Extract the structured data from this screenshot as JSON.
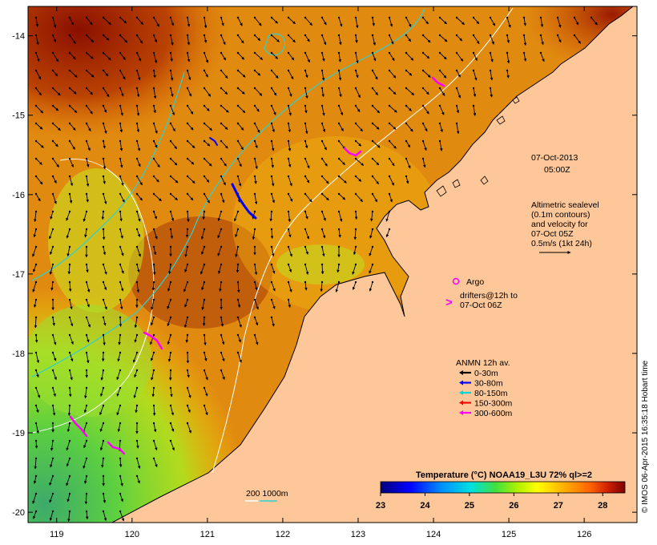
{
  "map": {
    "lon_ticks": [
      119,
      120,
      121,
      122,
      123,
      124,
      125,
      126
    ],
    "lat_ticks": [
      -14,
      -15,
      -16,
      -17,
      -18,
      -19,
      -20
    ],
    "lon_range": [
      118.62,
      126.7
    ],
    "lat_range": [
      -20.13,
      -13.63
    ],
    "timestamp_line1": "07-Oct-2013",
    "timestamp_line2": "05:00Z",
    "altimetry_note": [
      "Altimetric sealevel",
      "(0.1m contours)",
      "and velocity for",
      "07-Oct 05Z",
      "0.5m/s (1kt 24h)"
    ],
    "argo_label": "Argo",
    "drifters_label_1": "drifters@12h to",
    "drifters_label_2": "07-Oct 06Z",
    "anmn_title": "ANMN 12h av.",
    "anmn_items": [
      {
        "label": "0-30m",
        "color": "#000000"
      },
      {
        "label": "30-80m",
        "color": "#0000ff"
      },
      {
        "label": "80-150m",
        "color": "#00d6d6"
      },
      {
        "label": "150-300m",
        "color": "#ff0000"
      },
      {
        "label": "300-600m",
        "color": "#ff00ff"
      }
    ],
    "depth_scale_label": "200  1000m",
    "colorbar_title": "Temperature (°C) NOAA19_L3U 72% ql>=2",
    "colorbar_ticks": [
      23,
      24,
      25,
      26,
      27,
      28
    ],
    "colorbar_range": [
      23,
      28.5
    ],
    "credit": "© IMOS 06-Apr-2015 16:35:18 Hobart time",
    "colors": {
      "land": "#fdc79a",
      "argo": "#ff00ff",
      "drifter": "#ff00ff",
      "isobath_200": "#ffffff",
      "isobath_1000": "#30d0d0"
    }
  }
}
